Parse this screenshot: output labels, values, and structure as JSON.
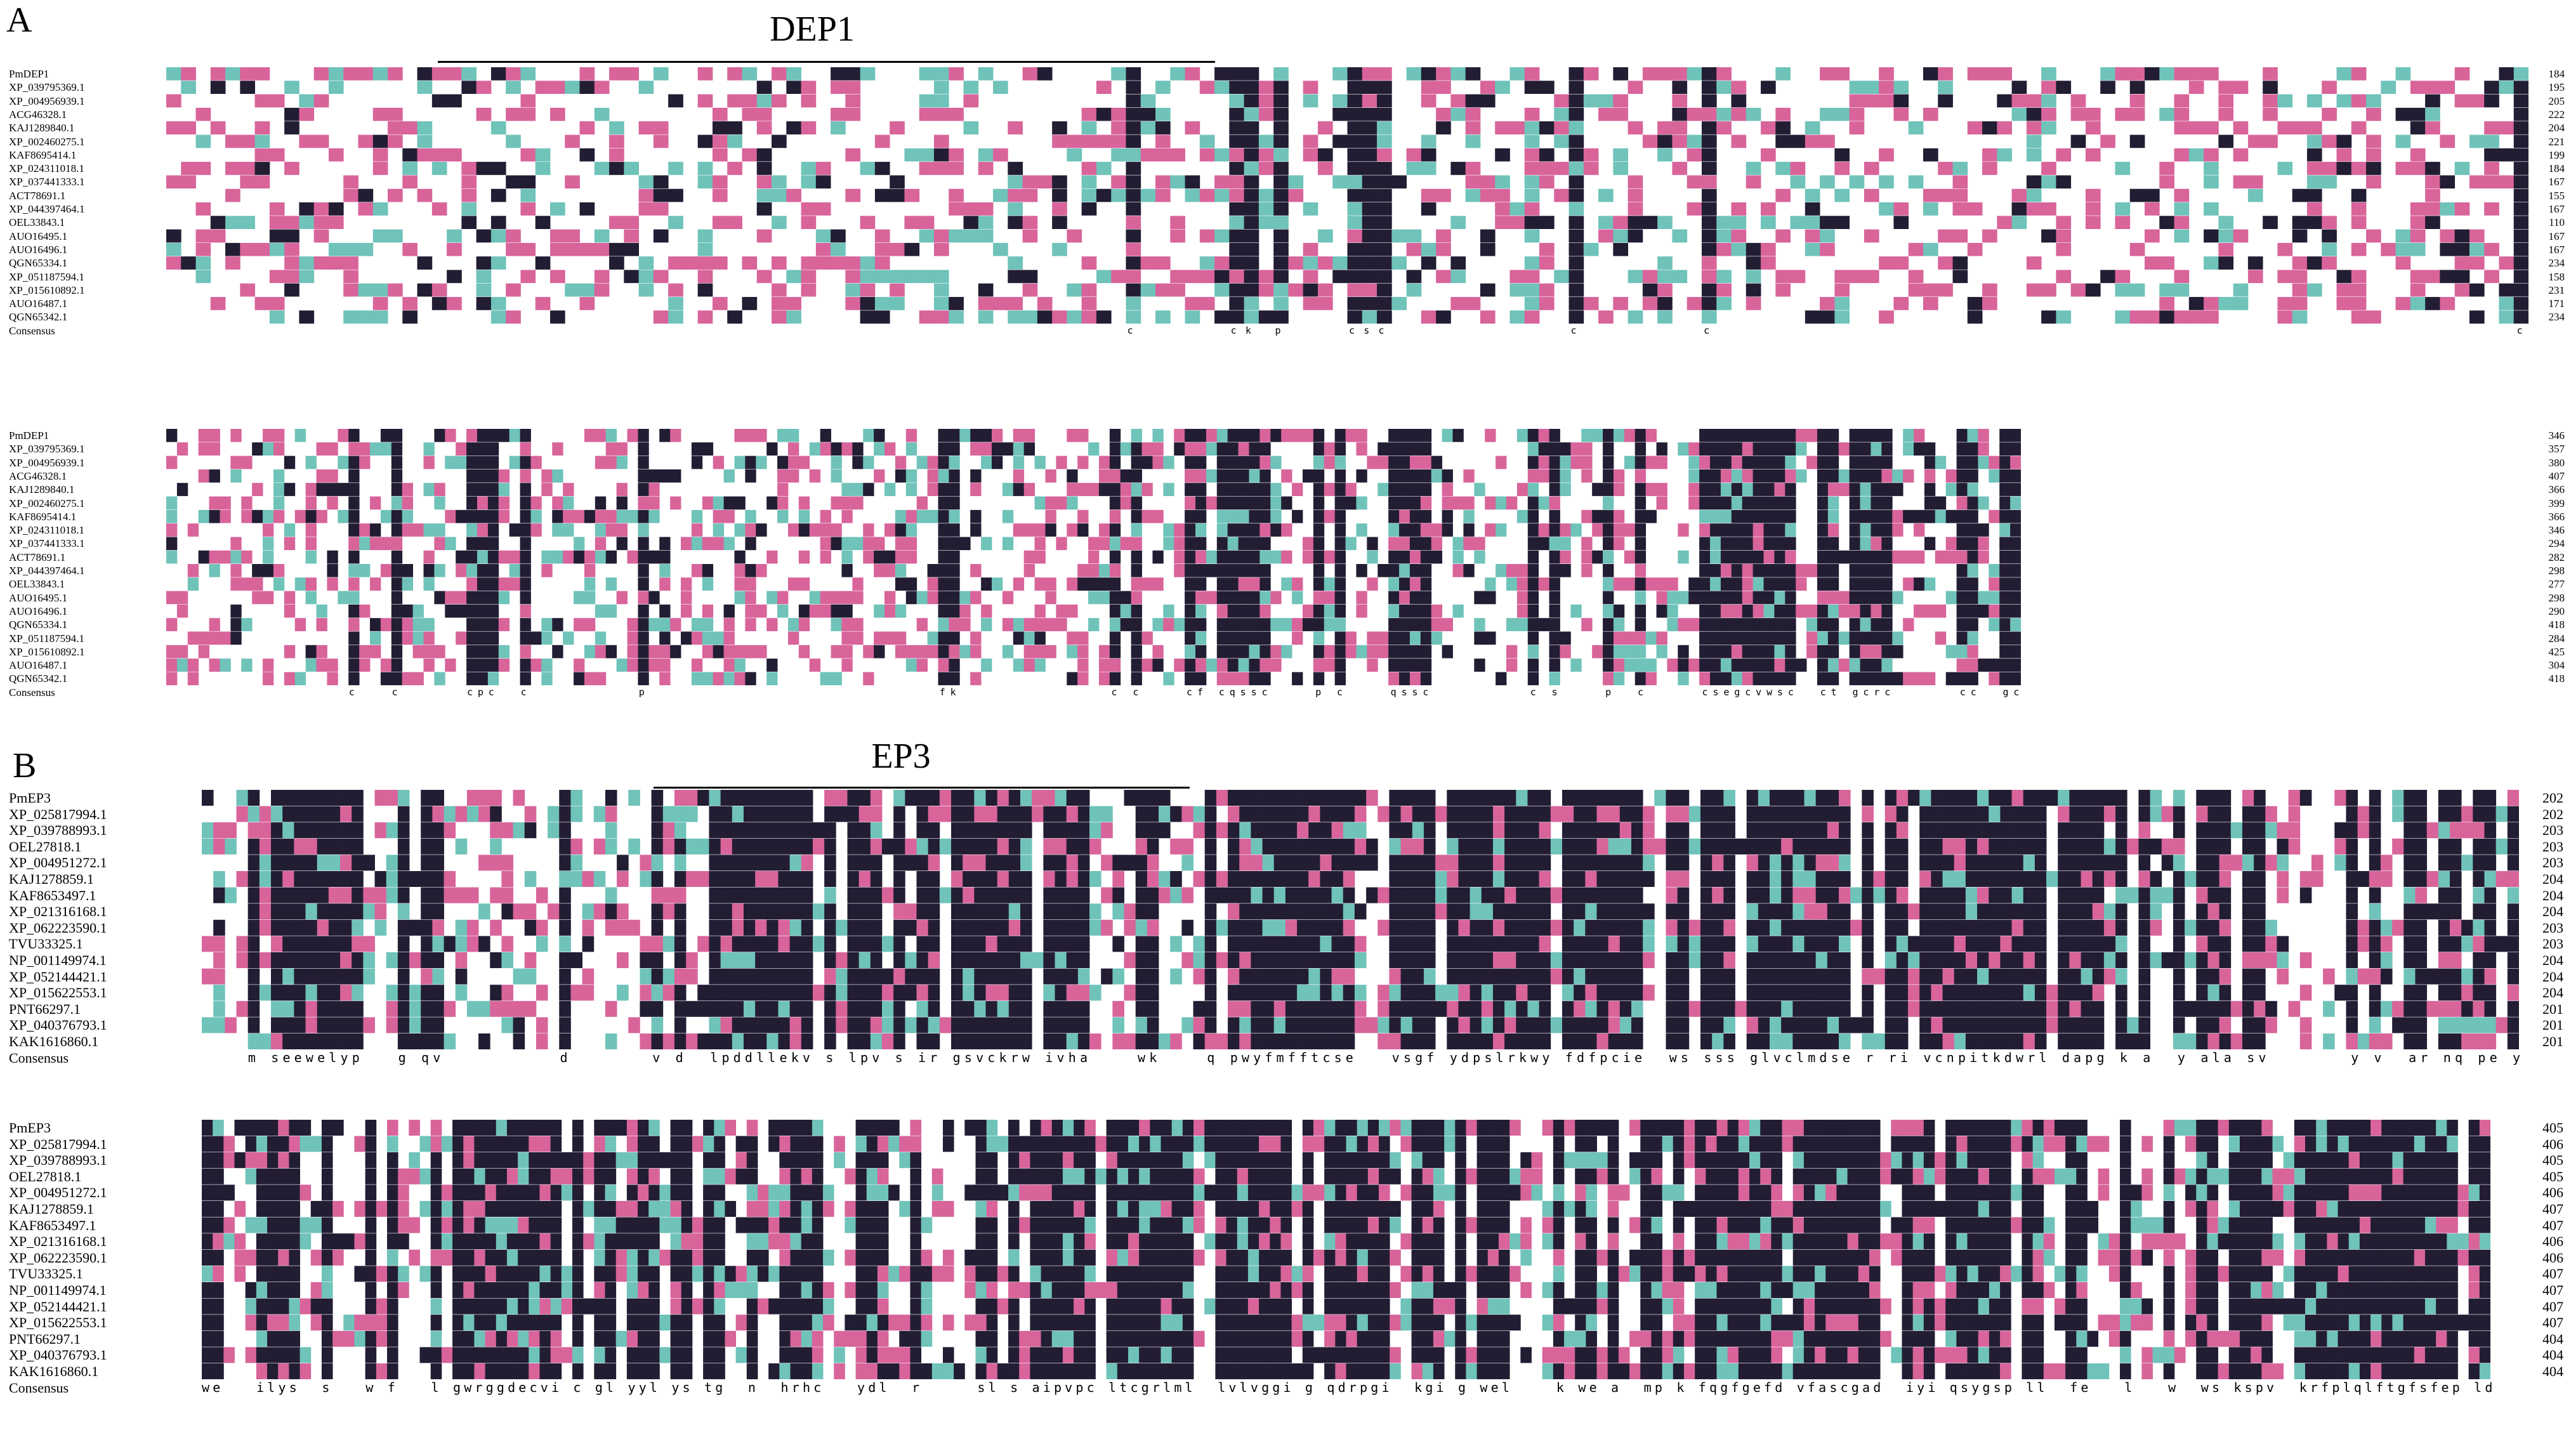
{
  "figure": {
    "panels": [
      {
        "label": "A",
        "region_label": "DEP1",
        "sequence_names": [
          "PmDEP1",
          "XP_039795369.1",
          "XP_004956939.1",
          "ACG46328.1",
          "KAJ1289840.1",
          "XP_002460275.1",
          "KAF8695414.1",
          "XP_024311018.1",
          "XP_037441333.1",
          "ACT78691.1",
          "XP_044397464.1",
          "OEL33843.1",
          "AUO16495.1",
          "AUO16496.1",
          "QGN65334.1",
          "XP_051187594.1",
          "XP_015610892.1",
          "AUO16487.1",
          "QGN65342.1"
        ],
        "consensus_label": "Consensus",
        "blocks": [
          {
            "end_positions": [
              "184",
              "195",
              "205",
              "222",
              "204",
              "221",
              "199",
              "184",
              "167",
              "155",
              "167",
              "110",
              "167",
              "167",
              "234",
              "158",
              "231",
              "171",
              "234"
            ],
            "consensus": "                                                                 c      ck p    csc            c        c                                                      c"
          },
          {
            "end_positions": [
              "346",
              "357",
              "380",
              "407",
              "366",
              "399",
              "366",
              "346",
              "294",
              "282",
              "298",
              "277",
              "298",
              "290",
              "418",
              "284",
              "425",
              "304",
              "418"
            ],
            "consensus": "                 c   c      cpc  c          p                           fk              c c    cf cqssc    p c    qssc         c s    p  c     csegcvwsc  ct gcrc      cc  gc"
          }
        ]
      },
      {
        "label": "B",
        "region_label": "EP3",
        "sequence_names": [
          "PmEP3",
          "XP_025817994.1",
          "XP_039788993.1",
          "OEL27818.1",
          "XP_004951272.1",
          "KAJ1278859.1",
          "KAF8653497.1",
          "XP_021316168.1",
          "XP_062223590.1",
          "TVU33325.1",
          "NP_001149974.1",
          "XP_052144421.1",
          "XP_015622553.1",
          "PNT66297.1",
          "XP_040376793.1",
          "KAK1616860.1"
        ],
        "consensus_label": "Consensus",
        "blocks": [
          {
            "end_positions": [
              "202",
              "202",
              "203",
              "203",
              "203",
              "204",
              "204",
              "204",
              "203",
              "203",
              "204",
              "204",
              "204",
              "201",
              "201",
              "201"
            ],
            "consensus": "    m seewelyp   g qv          d       v d  lpddllekv s lpv s ir gsvckrw ivha    wk    q pwyfmfftcse   vsgf ydpslrkwy fdfpcie  ws sss glvclmdse r ri vcnpitkdwrl dapg k a  y ala sv       y v  ar nq pe y"
          },
          {
            "end_positions": [
              "405",
              "406",
              "405",
              "405",
              "406",
              "407",
              "407",
              "406",
              "406",
              "407",
              "407",
              "407",
              "407",
              "404",
              "404",
              "404"
            ],
            "consensus": "we   ilys  s   w f   l gwrggdecvi c gl yyl ys tg  n  hrhc   ydl  r     sl s aipvpc ltcgrlml  lvlvggi g qdrpgi  kgi g wel    k we a  mp k fqgfgefd vfascgad  iyi qsygsp ll  fe   l   w  ws kspv  krfplqlftgfsfep ld"
          }
        ]
      }
    ],
    "colors": {
      "identical": "#221d33",
      "high_similarity": "#d8649a",
      "low_similarity": "#6fc3b9",
      "text_on_dark": "#ffffff",
      "text_on_light": "#000000"
    }
  }
}
